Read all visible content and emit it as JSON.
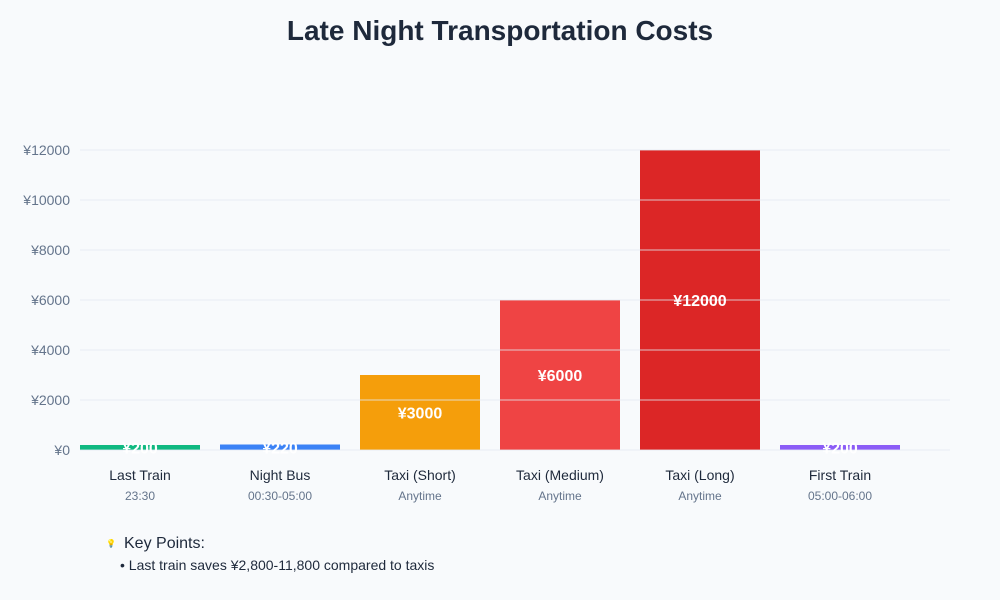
{
  "chart_data": {
    "type": "bar",
    "title": "Late Night Transportation Costs",
    "categories": [
      "Last Train",
      "Night Bus",
      "Taxi (Short)",
      "Taxi (Medium)",
      "Taxi (Long)",
      "First Train"
    ],
    "subtitles": [
      "23:30",
      "00:30-05:00",
      "Anytime",
      "Anytime",
      "Anytime",
      "05:00-06:00"
    ],
    "values": [
      200,
      220,
      3000,
      6000,
      12000,
      200
    ],
    "value_labels": [
      "¥200",
      "¥220",
      "¥3000",
      "¥6000",
      "¥12000",
      "¥200"
    ],
    "colors": [
      "#10b981",
      "#3b82f6",
      "#f59e0b",
      "#ef4444",
      "#dc2626",
      "#8b5cf6"
    ],
    "ylim": [
      0,
      12000
    ],
    "yticks": [
      0,
      2000,
      4000,
      6000,
      8000,
      10000,
      12000
    ],
    "ytick_labels": [
      "¥0",
      "¥2000",
      "¥4000",
      "¥6000",
      "¥8000",
      "¥10000",
      "¥12000"
    ],
    "grid": true,
    "xlabel": "",
    "ylabel": ""
  },
  "notes": {
    "icon": "lightbulb-icon",
    "heading": "Key Points:",
    "items": [
      "• Last train saves ¥2,800-11,800 compared to taxis"
    ]
  }
}
